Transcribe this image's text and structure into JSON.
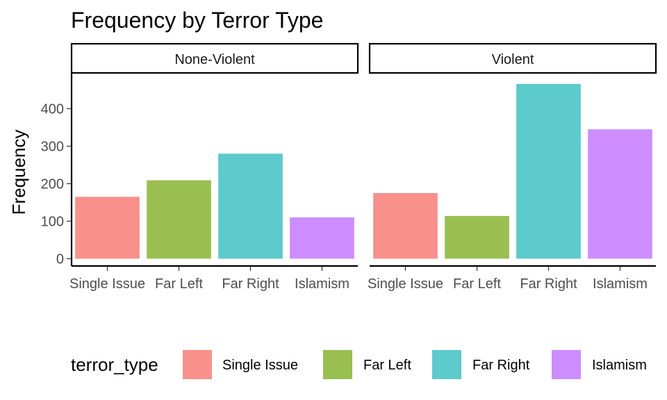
{
  "chart_data": {
    "type": "bar",
    "title": "Frequency by Terror Type",
    "ylabel": "Frequency",
    "xlabel": "",
    "ylim": [
      0,
      490
    ],
    "yticks": [
      0,
      100,
      200,
      300,
      400
    ],
    "categories": [
      "Single Issue",
      "Far Left",
      "Far Right",
      "Islamism"
    ],
    "colors": [
      "#F8908C",
      "#9ABF51",
      "#5DCACC",
      "#CD8DFE"
    ],
    "facets": [
      {
        "name": "None-Violent",
        "values": [
          165,
          209,
          280,
          110
        ]
      },
      {
        "name": "Violent",
        "values": [
          175,
          114,
          466,
          345
        ]
      }
    ],
    "legend": {
      "title": "terror_type",
      "position": "bottom",
      "entries": [
        "Single Issue",
        "Far Left",
        "Far Right",
        "Islamism"
      ]
    },
    "grid": false
  }
}
